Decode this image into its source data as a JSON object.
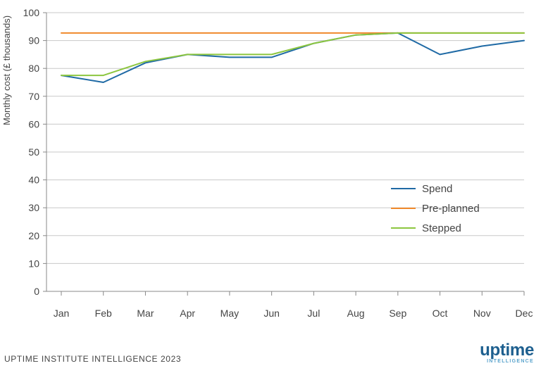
{
  "chart_data": {
    "type": "line",
    "ylabel": "Monthly cost (£ thousands)",
    "ylim": [
      0,
      100
    ],
    "yticks": [
      0,
      10,
      20,
      30,
      40,
      50,
      60,
      70,
      80,
      90,
      100
    ],
    "categories": [
      "Jan",
      "Feb",
      "Mar",
      "Apr",
      "May",
      "Jun",
      "Jul",
      "Aug",
      "Sep",
      "Oct",
      "Nov",
      "Dec"
    ],
    "grid": true,
    "legend_position": "right",
    "series": [
      {
        "name": "Spend",
        "color": "#1f6aa5",
        "values": [
          77.5,
          75,
          82,
          85,
          84,
          84,
          89,
          92,
          92.7,
          85,
          88,
          90
        ]
      },
      {
        "name": "Pre-planned",
        "color": "#f0892b",
        "values": [
          92.7,
          92.7,
          92.7,
          92.7,
          92.7,
          92.7,
          92.7,
          92.7,
          92.7,
          92.7,
          92.7,
          92.7
        ]
      },
      {
        "name": "Stepped",
        "color": "#8cc63f",
        "values": [
          77.5,
          77.5,
          82.5,
          85,
          85,
          85,
          89,
          92,
          92.7,
          92.7,
          92.7,
          92.7
        ]
      }
    ]
  },
  "footer": {
    "credit": "UPTIME INSTITUTE INTELLIGENCE 2023"
  },
  "logo": {
    "word": "uptime",
    "sub": "INTELLIGENCE"
  }
}
